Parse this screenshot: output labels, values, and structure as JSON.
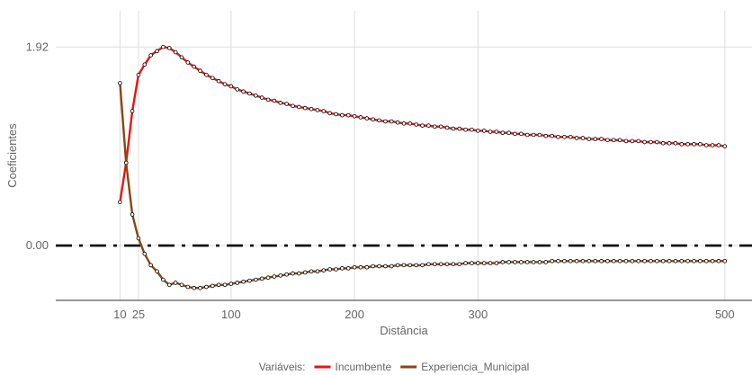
{
  "chart_data": {
    "type": "line",
    "xlabel": "Distância",
    "ylabel": "Coeficientes",
    "x_ticks": [
      10,
      25,
      100,
      200,
      300,
      500
    ],
    "x_tick_labels": [
      "10",
      "25",
      "100",
      "200",
      "300",
      "500"
    ],
    "y_ticks": [
      0.0,
      1.92
    ],
    "y_tick_labels": [
      "0.00",
      "1.92"
    ],
    "xlim": [
      -42,
      522
    ],
    "ylim": [
      -0.53,
      2.27
    ],
    "grid": true,
    "reference_line": {
      "y": 0,
      "style": "dash-dot",
      "color": "#000000"
    },
    "legend": {
      "title": "Variáveis:",
      "position": "bottom"
    },
    "series": [
      {
        "name": "Incumbente",
        "color": "#ee1111",
        "x": [
          10,
          15,
          20,
          25,
          30,
          35,
          40,
          45,
          50,
          55,
          60,
          65,
          70,
          75,
          80,
          85,
          90,
          95,
          100,
          105,
          110,
          115,
          120,
          125,
          130,
          135,
          140,
          145,
          150,
          155,
          160,
          165,
          170,
          175,
          180,
          185,
          190,
          195,
          200,
          205,
          210,
          215,
          220,
          225,
          230,
          235,
          240,
          245,
          250,
          255,
          260,
          265,
          270,
          275,
          280,
          285,
          290,
          295,
          300,
          305,
          310,
          315,
          320,
          325,
          330,
          335,
          340,
          345,
          350,
          355,
          360,
          365,
          370,
          375,
          380,
          385,
          390,
          395,
          400,
          405,
          410,
          415,
          420,
          425,
          430,
          435,
          440,
          445,
          450,
          455,
          460,
          465,
          470,
          475,
          480,
          485,
          490,
          495,
          500
        ],
        "y": [
          0.42,
          0.8,
          1.3,
          1.65,
          1.75,
          1.84,
          1.88,
          1.92,
          1.91,
          1.87,
          1.82,
          1.77,
          1.73,
          1.69,
          1.65,
          1.62,
          1.59,
          1.56,
          1.54,
          1.51,
          1.49,
          1.47,
          1.45,
          1.43,
          1.41,
          1.4,
          1.38,
          1.37,
          1.35,
          1.34,
          1.33,
          1.32,
          1.31,
          1.3,
          1.28,
          1.27,
          1.26,
          1.26,
          1.25,
          1.24,
          1.23,
          1.22,
          1.21,
          1.2,
          1.2,
          1.19,
          1.18,
          1.18,
          1.17,
          1.16,
          1.16,
          1.15,
          1.15,
          1.14,
          1.13,
          1.13,
          1.12,
          1.12,
          1.11,
          1.11,
          1.1,
          1.1,
          1.09,
          1.09,
          1.08,
          1.08,
          1.07,
          1.07,
          1.07,
          1.06,
          1.06,
          1.05,
          1.05,
          1.05,
          1.04,
          1.04,
          1.03,
          1.03,
          1.03,
          1.02,
          1.02,
          1.02,
          1.01,
          1.01,
          1.01,
          1.0,
          1.0,
          1.0,
          0.99,
          0.99,
          0.99,
          0.98,
          0.98,
          0.98,
          0.98,
          0.97,
          0.97,
          0.97,
          0.96
        ]
      },
      {
        "name": "Experiencia_Municipal",
        "color": "#8b4513",
        "x": [
          10,
          15,
          20,
          25,
          30,
          35,
          40,
          45,
          50,
          55,
          60,
          65,
          70,
          75,
          80,
          85,
          90,
          95,
          100,
          105,
          110,
          115,
          120,
          125,
          130,
          135,
          140,
          145,
          150,
          155,
          160,
          165,
          170,
          175,
          180,
          185,
          190,
          195,
          200,
          205,
          210,
          215,
          220,
          225,
          230,
          235,
          240,
          245,
          250,
          255,
          260,
          265,
          270,
          275,
          280,
          285,
          290,
          295,
          300,
          305,
          310,
          315,
          320,
          325,
          330,
          335,
          340,
          345,
          350,
          355,
          360,
          365,
          370,
          375,
          380,
          385,
          390,
          395,
          400,
          405,
          410,
          415,
          420,
          425,
          430,
          435,
          440,
          445,
          450,
          455,
          460,
          465,
          470,
          475,
          480,
          485,
          490,
          495,
          500
        ],
        "y": [
          1.57,
          0.8,
          0.3,
          0.07,
          -0.08,
          -0.19,
          -0.25,
          -0.33,
          -0.38,
          -0.36,
          -0.38,
          -0.4,
          -0.41,
          -0.41,
          -0.4,
          -0.39,
          -0.38,
          -0.38,
          -0.37,
          -0.36,
          -0.35,
          -0.34,
          -0.33,
          -0.32,
          -0.31,
          -0.3,
          -0.29,
          -0.28,
          -0.27,
          -0.27,
          -0.26,
          -0.25,
          -0.25,
          -0.24,
          -0.23,
          -0.23,
          -0.22,
          -0.22,
          -0.21,
          -0.21,
          -0.21,
          -0.2,
          -0.2,
          -0.2,
          -0.2,
          -0.19,
          -0.19,
          -0.19,
          -0.19,
          -0.19,
          -0.18,
          -0.18,
          -0.18,
          -0.18,
          -0.18,
          -0.18,
          -0.17,
          -0.17,
          -0.17,
          -0.17,
          -0.17,
          -0.17,
          -0.16,
          -0.16,
          -0.16,
          -0.16,
          -0.16,
          -0.16,
          -0.16,
          -0.16,
          -0.15,
          -0.15,
          -0.15,
          -0.15,
          -0.15,
          -0.15,
          -0.15,
          -0.15,
          -0.15,
          -0.15,
          -0.15,
          -0.15,
          -0.15,
          -0.15,
          -0.15,
          -0.15,
          -0.15,
          -0.15,
          -0.15,
          -0.15,
          -0.15,
          -0.15,
          -0.15,
          -0.15,
          -0.15,
          -0.15,
          -0.15,
          -0.15,
          -0.15
        ]
      }
    ]
  }
}
